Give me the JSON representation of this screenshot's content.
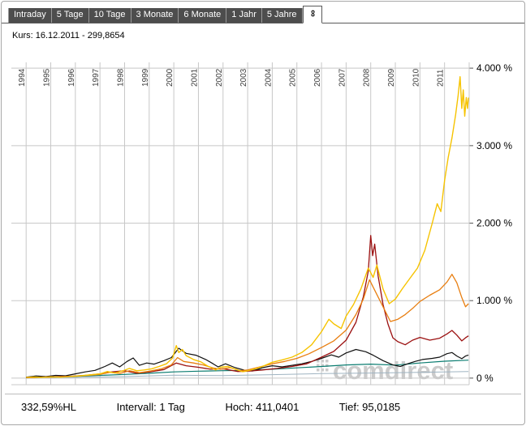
{
  "tabs": {
    "items": [
      {
        "label": "Intraday",
        "selected": false
      },
      {
        "label": "5 Tage",
        "selected": false
      },
      {
        "label": "10 Tage",
        "selected": false
      },
      {
        "label": "3 Monate",
        "selected": false
      },
      {
        "label": "6 Monate",
        "selected": false
      },
      {
        "label": "1 Jahr",
        "selected": false
      },
      {
        "label": "5 Jahre",
        "selected": false
      },
      {
        "label": "∞",
        "selected": true
      }
    ]
  },
  "kurs": {
    "label": "Kurs: 16.12.2011 - 299,8654"
  },
  "status": {
    "change": "332,59%HL",
    "interval": "Intervall: 1 Tag",
    "high": "Hoch: 411,0401",
    "low": "Tief: 95,0185"
  },
  "watermark": {
    "text": "comdirect",
    "color": "#cbcbcb"
  },
  "chart_data": {
    "type": "line",
    "title": "",
    "xlabel": "",
    "ylabel": "",
    "grid": true,
    "legend": "none",
    "xlim": [
      1993.4,
      2012.0
    ],
    "ylim": [
      -85,
      4075
    ],
    "x_ticks": [
      1994,
      1995,
      1996,
      1997,
      1998,
      1999,
      2000,
      2001,
      2002,
      2003,
      2004,
      2005,
      2006,
      2007,
      2008,
      2009,
      2010,
      2011
    ],
    "y_ticks": [
      {
        "value": 0,
        "label": "0 %"
      },
      {
        "value": 1000,
        "label": "1.000 %"
      },
      {
        "value": 2000,
        "label": "2.000 %"
      },
      {
        "value": 3000,
        "label": "3.000 %"
      },
      {
        "value": 4000,
        "label": "4.000 %"
      }
    ],
    "series": [
      {
        "name": "gray-line",
        "color": "#9fb4c2",
        "width": 1,
        "points": [
          [
            1994.0,
            2
          ],
          [
            1996.0,
            10
          ],
          [
            1998.0,
            20
          ],
          [
            2000.0,
            38
          ],
          [
            2002.0,
            32
          ],
          [
            2004.0,
            45
          ],
          [
            2006.0,
            58
          ],
          [
            2008.0,
            66
          ],
          [
            2010.0,
            75
          ],
          [
            2011.97,
            85
          ]
        ]
      },
      {
        "name": "teal-line",
        "color": "#0a7c70",
        "width": 1.2,
        "points": [
          [
            1994.0,
            4
          ],
          [
            1995.0,
            12
          ],
          [
            1996.0,
            22
          ],
          [
            1997.0,
            35
          ],
          [
            1998.0,
            48
          ],
          [
            1999.0,
            62
          ],
          [
            2000.0,
            80
          ],
          [
            2001.0,
            90
          ],
          [
            2002.0,
            96
          ],
          [
            2003.0,
            100
          ],
          [
            2004.0,
            115
          ],
          [
            2005.0,
            132
          ],
          [
            2006.0,
            150
          ],
          [
            2007.0,
            170
          ],
          [
            2008.0,
            180
          ],
          [
            2009.0,
            168
          ],
          [
            2010.0,
            195
          ],
          [
            2011.0,
            218
          ],
          [
            2011.97,
            232
          ]
        ]
      },
      {
        "name": "black-line",
        "color": "#111111",
        "width": 1.2,
        "points": [
          [
            1994.0,
            12
          ],
          [
            1994.4,
            28
          ],
          [
            1994.8,
            20
          ],
          [
            1995.2,
            35
          ],
          [
            1995.6,
            30
          ],
          [
            1996.0,
            55
          ],
          [
            1996.4,
            80
          ],
          [
            1996.8,
            100
          ],
          [
            1997.2,
            150
          ],
          [
            1997.5,
            195
          ],
          [
            1997.8,
            145
          ],
          [
            1998.1,
            215
          ],
          [
            1998.35,
            260
          ],
          [
            1998.6,
            165
          ],
          [
            1998.9,
            195
          ],
          [
            1999.2,
            180
          ],
          [
            1999.6,
            225
          ],
          [
            1999.9,
            265
          ],
          [
            2000.2,
            385
          ],
          [
            2000.5,
            320
          ],
          [
            2000.9,
            295
          ],
          [
            2001.3,
            240
          ],
          [
            2001.6,
            185
          ],
          [
            2001.8,
            145
          ],
          [
            2002.1,
            185
          ],
          [
            2002.5,
            135
          ],
          [
            2002.9,
            100
          ],
          [
            2003.2,
            92
          ],
          [
            2003.6,
            135
          ],
          [
            2004.0,
            160
          ],
          [
            2004.4,
            145
          ],
          [
            2004.8,
            165
          ],
          [
            2005.2,
            185
          ],
          [
            2005.6,
            215
          ],
          [
            2006.0,
            255
          ],
          [
            2006.4,
            300
          ],
          [
            2006.7,
            270
          ],
          [
            2007.0,
            325
          ],
          [
            2007.4,
            370
          ],
          [
            2007.8,
            340
          ],
          [
            2008.1,
            295
          ],
          [
            2008.5,
            225
          ],
          [
            2008.9,
            170
          ],
          [
            2009.2,
            150
          ],
          [
            2009.5,
            185
          ],
          [
            2009.8,
            215
          ],
          [
            2010.1,
            240
          ],
          [
            2010.5,
            255
          ],
          [
            2010.8,
            270
          ],
          [
            2011.1,
            315
          ],
          [
            2011.3,
            330
          ],
          [
            2011.5,
            285
          ],
          [
            2011.7,
            250
          ],
          [
            2011.85,
            285
          ],
          [
            2011.97,
            298
          ]
        ]
      },
      {
        "name": "darkred-line",
        "color": "#9b1010",
        "width": 1.3,
        "points": [
          [
            1994.0,
            6
          ],
          [
            1994.6,
            12
          ],
          [
            1995.2,
            18
          ],
          [
            1995.8,
            25
          ],
          [
            1996.4,
            35
          ],
          [
            1997.0,
            55
          ],
          [
            1997.5,
            80
          ],
          [
            1998.0,
            95
          ],
          [
            1998.5,
            62
          ],
          [
            1999.0,
            78
          ],
          [
            1999.6,
            110
          ],
          [
            2000.1,
            195
          ],
          [
            2000.5,
            160
          ],
          [
            2001.0,
            140
          ],
          [
            2001.5,
            115
          ],
          [
            2002.0,
            120
          ],
          [
            2002.6,
            85
          ],
          [
            2003.0,
            88
          ],
          [
            2003.6,
            105
          ],
          [
            2004.2,
            125
          ],
          [
            2004.8,
            150
          ],
          [
            2005.4,
            185
          ],
          [
            2006.0,
            270
          ],
          [
            2006.5,
            345
          ],
          [
            2007.0,
            490
          ],
          [
            2007.4,
            720
          ],
          [
            2007.7,
            1050
          ],
          [
            2007.9,
            1380
          ],
          [
            2008.0,
            1840
          ],
          [
            2008.08,
            1580
          ],
          [
            2008.16,
            1730
          ],
          [
            2008.3,
            1320
          ],
          [
            2008.5,
            950
          ],
          [
            2008.7,
            700
          ],
          [
            2008.9,
            520
          ],
          [
            2009.1,
            470
          ],
          [
            2009.4,
            430
          ],
          [
            2009.7,
            490
          ],
          [
            2010.0,
            525
          ],
          [
            2010.4,
            490
          ],
          [
            2010.8,
            515
          ],
          [
            2011.1,
            570
          ],
          [
            2011.3,
            615
          ],
          [
            2011.5,
            555
          ],
          [
            2011.7,
            480
          ],
          [
            2011.85,
            520
          ],
          [
            2011.97,
            545
          ]
        ]
      },
      {
        "name": "orange-line",
        "color": "#e87e10",
        "width": 1.3,
        "points": [
          [
            1994.0,
            5
          ],
          [
            1994.5,
            9
          ],
          [
            1995.0,
            12
          ],
          [
            1995.5,
            18
          ],
          [
            1996.0,
            24
          ],
          [
            1996.5,
            35
          ],
          [
            1997.0,
            48
          ],
          [
            1997.4,
            75
          ],
          [
            1997.8,
            60
          ],
          [
            1998.2,
            95
          ],
          [
            1998.6,
            70
          ],
          [
            1999.0,
            88
          ],
          [
            1999.5,
            120
          ],
          [
            1999.9,
            170
          ],
          [
            2000.15,
            265
          ],
          [
            2000.4,
            215
          ],
          [
            2000.8,
            195
          ],
          [
            2001.2,
            170
          ],
          [
            2001.6,
            130
          ],
          [
            2001.9,
            115
          ],
          [
            2002.3,
            135
          ],
          [
            2002.7,
            95
          ],
          [
            2003.0,
            105
          ],
          [
            2003.5,
            145
          ],
          [
            2004.0,
            185
          ],
          [
            2004.5,
            215
          ],
          [
            2005.0,
            255
          ],
          [
            2005.5,
            315
          ],
          [
            2006.0,
            395
          ],
          [
            2006.5,
            480
          ],
          [
            2007.0,
            620
          ],
          [
            2007.4,
            820
          ],
          [
            2007.7,
            1020
          ],
          [
            2007.95,
            1270
          ],
          [
            2008.2,
            1110
          ],
          [
            2008.5,
            920
          ],
          [
            2008.8,
            730
          ],
          [
            2009.1,
            760
          ],
          [
            2009.4,
            820
          ],
          [
            2009.7,
            900
          ],
          [
            2010.0,
            990
          ],
          [
            2010.4,
            1070
          ],
          [
            2010.8,
            1140
          ],
          [
            2011.1,
            1240
          ],
          [
            2011.3,
            1340
          ],
          [
            2011.5,
            1230
          ],
          [
            2011.7,
            1040
          ],
          [
            2011.85,
            920
          ],
          [
            2011.97,
            960
          ]
        ]
      },
      {
        "name": "yellow-line",
        "color": "#f6c300",
        "width": 1.4,
        "points": [
          [
            1994.0,
            8
          ],
          [
            1994.3,
            14
          ],
          [
            1994.6,
            10
          ],
          [
            1995.0,
            16
          ],
          [
            1995.4,
            12
          ],
          [
            1995.8,
            22
          ],
          [
            1996.2,
            30
          ],
          [
            1996.6,
            42
          ],
          [
            1997.0,
            55
          ],
          [
            1997.3,
            85
          ],
          [
            1997.6,
            65
          ],
          [
            1997.9,
            92
          ],
          [
            1998.2,
            125
          ],
          [
            1998.5,
            95
          ],
          [
            1998.8,
            105
          ],
          [
            1999.1,
            120
          ],
          [
            1999.4,
            150
          ],
          [
            1999.7,
            185
          ],
          [
            1999.95,
            260
          ],
          [
            2000.1,
            420
          ],
          [
            2000.2,
            330
          ],
          [
            2000.35,
            370
          ],
          [
            2000.5,
            290
          ],
          [
            2000.8,
            240
          ],
          [
            2001.1,
            210
          ],
          [
            2001.4,
            150
          ],
          [
            2001.7,
            105
          ],
          [
            2001.9,
            140
          ],
          [
            2002.2,
            150
          ],
          [
            2002.5,
            115
          ],
          [
            2002.8,
            82
          ],
          [
            2003.0,
            95
          ],
          [
            2003.3,
            120
          ],
          [
            2003.6,
            150
          ],
          [
            2004.0,
            205
          ],
          [
            2004.4,
            235
          ],
          [
            2004.8,
            270
          ],
          [
            2005.2,
            330
          ],
          [
            2005.6,
            430
          ],
          [
            2006.0,
            600
          ],
          [
            2006.3,
            760
          ],
          [
            2006.5,
            700
          ],
          [
            2006.8,
            640
          ],
          [
            2007.0,
            800
          ],
          [
            2007.3,
            950
          ],
          [
            2007.6,
            1150
          ],
          [
            2007.9,
            1420
          ],
          [
            2008.1,
            1300
          ],
          [
            2008.25,
            1460
          ],
          [
            2008.5,
            1150
          ],
          [
            2008.75,
            960
          ],
          [
            2009.0,
            1020
          ],
          [
            2009.3,
            1160
          ],
          [
            2009.6,
            1290
          ],
          [
            2009.9,
            1420
          ],
          [
            2010.2,
            1650
          ],
          [
            2010.5,
            2000
          ],
          [
            2010.7,
            2250
          ],
          [
            2010.85,
            2150
          ],
          [
            2011.0,
            2550
          ],
          [
            2011.15,
            2850
          ],
          [
            2011.3,
            3100
          ],
          [
            2011.45,
            3400
          ],
          [
            2011.55,
            3650
          ],
          [
            2011.63,
            3890
          ],
          [
            2011.7,
            3480
          ],
          [
            2011.76,
            3720
          ],
          [
            2011.82,
            3380
          ],
          [
            2011.88,
            3620
          ],
          [
            2011.93,
            3480
          ],
          [
            2011.97,
            3620
          ]
        ]
      }
    ]
  }
}
